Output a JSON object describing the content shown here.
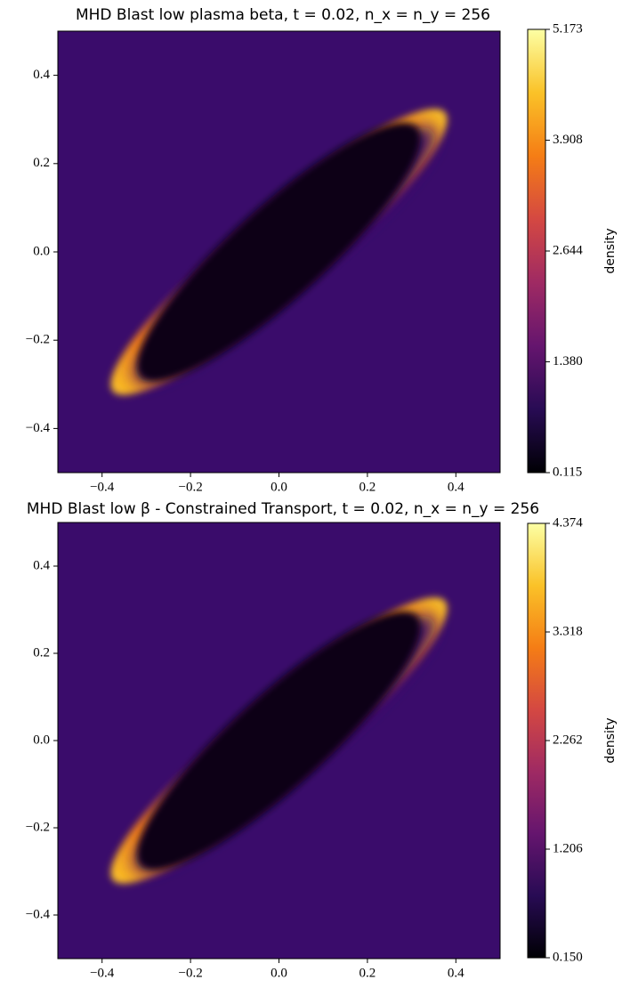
{
  "chart_data": [
    {
      "type": "heatmap",
      "title": "MHD Blast low plasma beta, t = 0.02, n_x = n_y = 256",
      "xlim": [
        -0.5,
        0.5
      ],
      "ylim": [
        -0.5,
        0.5
      ],
      "xticks": [
        {
          "value": -0.4,
          "label": "−0.4"
        },
        {
          "value": -0.2,
          "label": "−0.2"
        },
        {
          "value": 0,
          "label": "0.0"
        },
        {
          "value": 0.2,
          "label": "0.2"
        },
        {
          "value": 0.4,
          "label": "0.4"
        }
      ],
      "yticks": [
        {
          "value": -0.4,
          "label": "−0.4"
        },
        {
          "value": -0.2,
          "label": "−0.2"
        },
        {
          "value": 0,
          "label": "0.0"
        },
        {
          "value": 0.2,
          "label": "0.2"
        },
        {
          "value": 0.4,
          "label": "0.4"
        }
      ],
      "colormap": "inferno",
      "colorbar": {
        "label": "density",
        "lim": [
          0.115,
          5.173
        ],
        "ticks": [
          0.115,
          {
            "value": 1.38,
            "label": "1.380"
          },
          2.644,
          3.908,
          5.173
        ]
      }
    },
    {
      "type": "heatmap",
      "title": "MHD Blast low β - Constrained Transport, t = 0.02, n_x = n_y = 256",
      "xlim": [
        -0.5,
        0.5
      ],
      "ylim": [
        -0.5,
        0.5
      ],
      "xticks": [
        {
          "value": -0.4,
          "label": "−0.4"
        },
        {
          "value": -0.2,
          "label": "−0.2"
        },
        {
          "value": 0,
          "label": "0.0"
        },
        {
          "value": 0.2,
          "label": "0.2"
        },
        {
          "value": 0.4,
          "label": "0.4"
        }
      ],
      "yticks": [
        {
          "value": -0.4,
          "label": "−0.4"
        },
        {
          "value": -0.2,
          "label": "−0.2"
        },
        {
          "value": 0,
          "label": "0.0"
        },
        {
          "value": 0.2,
          "label": "0.2"
        },
        {
          "value": 0.4,
          "label": "0.4"
        }
      ],
      "colormap": "inferno",
      "colorbar": {
        "label": "density",
        "lim": [
          0.15,
          4.374
        ],
        "ticks": [
          {
            "value": 0.15,
            "label": "0.150"
          },
          1.206,
          2.262,
          3.318,
          4.374
        ]
      }
    }
  ]
}
